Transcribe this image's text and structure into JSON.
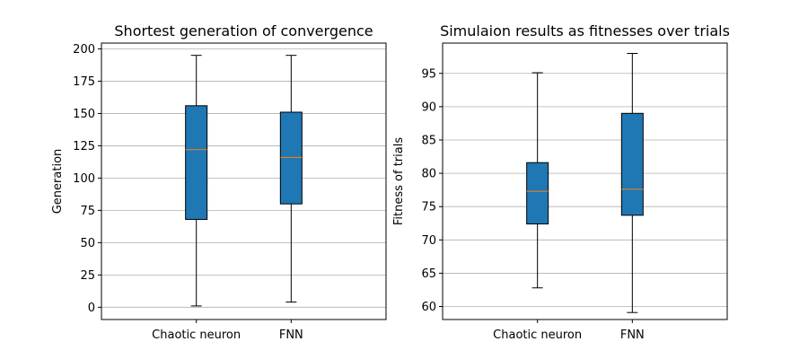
{
  "chart_data": [
    {
      "type": "boxplot",
      "title": "Shortest generation of convergence",
      "xlabel": "",
      "ylabel": "Generation",
      "ylim": [
        -9.5,
        204.5
      ],
      "yticks": [
        0,
        25,
        50,
        75,
        100,
        125,
        150,
        175,
        200
      ],
      "grid": "y",
      "categories": [
        "Chaotic neuron",
        "FNN"
      ],
      "boxes": [
        {
          "category": "Chaotic neuron",
          "whisker_low": 1,
          "q1": 68,
          "median": 122,
          "q3": 156,
          "whisker_high": 195
        },
        {
          "category": "FNN",
          "whisker_low": 4,
          "q1": 80,
          "median": 116,
          "q3": 151,
          "whisker_high": 195
        }
      ],
      "box_color": "#1f77b4",
      "median_color": "#ff7f0e"
    },
    {
      "type": "boxplot",
      "title": "Simulaion results as fitnesses over trials",
      "xlabel": "",
      "ylabel": "Fitness of trials",
      "ylim": [
        58.05,
        99.55
      ],
      "yticks": [
        60,
        65,
        70,
        75,
        80,
        85,
        90,
        95
      ],
      "grid": "y",
      "categories": [
        "Chaotic neuron",
        "FNN"
      ],
      "boxes": [
        {
          "category": "Chaotic neuron",
          "whisker_low": 62.8,
          "q1": 72.4,
          "median": 77.3,
          "q3": 81.6,
          "whisker_high": 95.1
        },
        {
          "category": "FNN",
          "whisker_low": 59.1,
          "q1": 73.7,
          "median": 77.6,
          "q3": 89.0,
          "whisker_high": 98.0
        }
      ],
      "box_color": "#1f77b4",
      "median_color": "#ff7f0e"
    }
  ]
}
